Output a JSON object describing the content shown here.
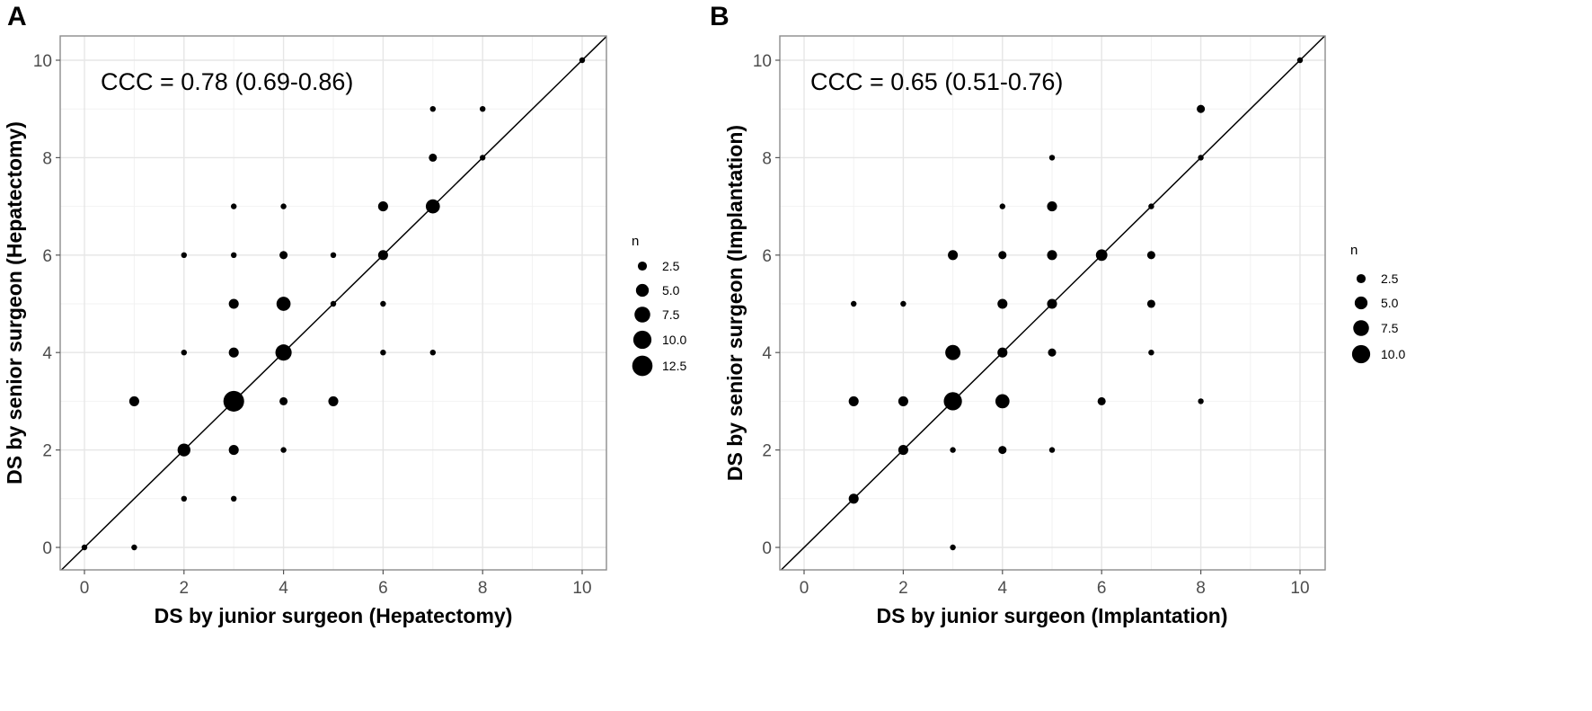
{
  "chart_data": [
    {
      "type": "scatter",
      "panel_label": "A",
      "xlabel": "DS by junior surgeon (Hepatectomy)",
      "ylabel": "DS by senior surgeon (Hepatectomy)",
      "annotation": "CCC = 0.78 (0.69-0.86)",
      "xlim": [
        0,
        10
      ],
      "ylim": [
        0,
        10
      ],
      "x_ticks": [
        "0",
        "2",
        "4",
        "6",
        "8",
        "10"
      ],
      "y_ticks": [
        "0",
        "2",
        "4",
        "6",
        "8",
        "10"
      ],
      "reference_line": "y = x",
      "grid": true,
      "size_legend": {
        "title": "n",
        "labels": [
          "2.5",
          "5.0",
          "7.5",
          "10.0",
          "12.5"
        ],
        "values": [
          2.5,
          5.0,
          7.5,
          10.0,
          12.5
        ]
      },
      "points": [
        {
          "x": 0,
          "y": 0,
          "n": 1
        },
        {
          "x": 1,
          "y": 0,
          "n": 1
        },
        {
          "x": 1,
          "y": 3,
          "n": 3
        },
        {
          "x": 2,
          "y": 1,
          "n": 1
        },
        {
          "x": 2,
          "y": 2,
          "n": 5
        },
        {
          "x": 2,
          "y": 4,
          "n": 1
        },
        {
          "x": 2,
          "y": 6,
          "n": 1
        },
        {
          "x": 3,
          "y": 1,
          "n": 1
        },
        {
          "x": 3,
          "y": 2,
          "n": 3
        },
        {
          "x": 3,
          "y": 3,
          "n": 13
        },
        {
          "x": 3,
          "y": 4,
          "n": 3
        },
        {
          "x": 3,
          "y": 5,
          "n": 3
        },
        {
          "x": 3,
          "y": 6,
          "n": 1
        },
        {
          "x": 3,
          "y": 7,
          "n": 1
        },
        {
          "x": 4,
          "y": 2,
          "n": 1
        },
        {
          "x": 4,
          "y": 3,
          "n": 2
        },
        {
          "x": 4,
          "y": 4,
          "n": 8
        },
        {
          "x": 4,
          "y": 5,
          "n": 6
        },
        {
          "x": 4,
          "y": 6,
          "n": 2
        },
        {
          "x": 4,
          "y": 7,
          "n": 1
        },
        {
          "x": 5,
          "y": 3,
          "n": 3
        },
        {
          "x": 5,
          "y": 5,
          "n": 1
        },
        {
          "x": 5,
          "y": 6,
          "n": 1
        },
        {
          "x": 6,
          "y": 4,
          "n": 1
        },
        {
          "x": 6,
          "y": 5,
          "n": 1
        },
        {
          "x": 6,
          "y": 6,
          "n": 3
        },
        {
          "x": 6,
          "y": 7,
          "n": 3
        },
        {
          "x": 7,
          "y": 4,
          "n": 1
        },
        {
          "x": 7,
          "y": 7,
          "n": 6
        },
        {
          "x": 7,
          "y": 8,
          "n": 2
        },
        {
          "x": 7,
          "y": 9,
          "n": 1
        },
        {
          "x": 8,
          "y": 8,
          "n": 1
        },
        {
          "x": 8,
          "y": 9,
          "n": 1
        },
        {
          "x": 10,
          "y": 10,
          "n": 1
        }
      ]
    },
    {
      "type": "scatter",
      "panel_label": "B",
      "xlabel": "DS by junior surgeon (Implantation)",
      "ylabel": "DS by senior surgeon (Implantation)",
      "annotation": "CCC = 0.65 (0.51-0.76)",
      "xlim": [
        0,
        10
      ],
      "ylim": [
        0,
        10
      ],
      "x_ticks": [
        "0",
        "2",
        "4",
        "6",
        "8",
        "10"
      ],
      "y_ticks": [
        "0",
        "2",
        "4",
        "6",
        "8",
        "10"
      ],
      "reference_line": "y = x",
      "grid": true,
      "size_legend": {
        "title": "n",
        "labels": [
          "2.5",
          "5.0",
          "7.5",
          "10.0"
        ],
        "values": [
          2.5,
          5.0,
          7.5,
          10.0
        ]
      },
      "points": [
        {
          "x": 1,
          "y": 1,
          "n": 3
        },
        {
          "x": 1,
          "y": 3,
          "n": 3
        },
        {
          "x": 1,
          "y": 5,
          "n": 1
        },
        {
          "x": 2,
          "y": 2,
          "n": 3
        },
        {
          "x": 2,
          "y": 3,
          "n": 3
        },
        {
          "x": 2,
          "y": 5,
          "n": 1
        },
        {
          "x": 3,
          "y": 0,
          "n": 1
        },
        {
          "x": 3,
          "y": 2,
          "n": 1
        },
        {
          "x": 3,
          "y": 3,
          "n": 10
        },
        {
          "x": 3,
          "y": 4,
          "n": 7
        },
        {
          "x": 3,
          "y": 6,
          "n": 3
        },
        {
          "x": 4,
          "y": 2,
          "n": 2
        },
        {
          "x": 4,
          "y": 3,
          "n": 6
        },
        {
          "x": 4,
          "y": 4,
          "n": 3
        },
        {
          "x": 4,
          "y": 5,
          "n": 3
        },
        {
          "x": 4,
          "y": 6,
          "n": 2
        },
        {
          "x": 4,
          "y": 7,
          "n": 1
        },
        {
          "x": 5,
          "y": 2,
          "n": 1
        },
        {
          "x": 5,
          "y": 4,
          "n": 2
        },
        {
          "x": 5,
          "y": 5,
          "n": 3
        },
        {
          "x": 5,
          "y": 6,
          "n": 3
        },
        {
          "x": 5,
          "y": 7,
          "n": 3
        },
        {
          "x": 5,
          "y": 8,
          "n": 1
        },
        {
          "x": 6,
          "y": 3,
          "n": 2
        },
        {
          "x": 6,
          "y": 6,
          "n": 4
        },
        {
          "x": 7,
          "y": 4,
          "n": 1
        },
        {
          "x": 7,
          "y": 5,
          "n": 2
        },
        {
          "x": 7,
          "y": 6,
          "n": 2
        },
        {
          "x": 7,
          "y": 7,
          "n": 1
        },
        {
          "x": 8,
          "y": 3,
          "n": 1
        },
        {
          "x": 8,
          "y": 8,
          "n": 1
        },
        {
          "x": 8,
          "y": 9,
          "n": 2
        },
        {
          "x": 10,
          "y": 10,
          "n": 1
        }
      ]
    }
  ]
}
